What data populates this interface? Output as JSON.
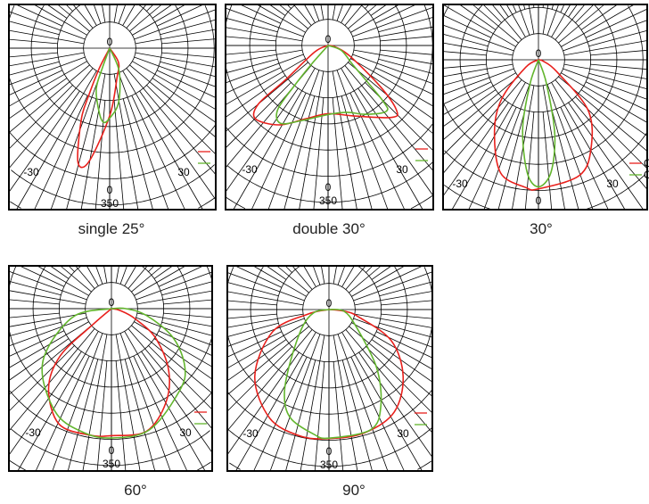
{
  "colors": {
    "c0": "#e8201c",
    "c90": "#62b52d",
    "grid": "#000000"
  },
  "chart_data": [
    {
      "type": "polar",
      "caption": "single 25°",
      "labels": {
        "top": "0",
        "left": "-30",
        "right": "30",
        "bottom": "0",
        "scale": "350"
      },
      "legend": [
        "",
        ""
      ],
      "series": [
        {
          "color": "#e8201c",
          "points": [
            [
              0,
              0
            ],
            [
              -27.2,
              0.87
            ],
            [
              -23.9,
              1.96
            ],
            [
              -21.8,
              2.91
            ],
            [
              -15.6,
              4.52
            ],
            [
              -10.4,
              4.42
            ],
            [
              0,
              2.59
            ],
            [
              14.3,
              1.15
            ],
            [
              32,
              0.64
            ],
            [
              0,
              0
            ]
          ]
        },
        {
          "color": "#62b52d",
          "points": [
            [
              0,
              0
            ],
            [
              -20.2,
              0.82
            ],
            [
              -18.1,
              1.65
            ],
            [
              -9.1,
              2.51
            ],
            [
              -4.6,
              2.85
            ],
            [
              0,
              2.68
            ],
            [
              9.3,
              2.11
            ],
            [
              22.3,
              0.96
            ],
            [
              0,
              0
            ]
          ]
        }
      ]
    },
    {
      "type": "polar",
      "caption": "double 30°",
      "labels": {
        "top": "0",
        "left": "-30",
        "right": "30",
        "bottom": "0",
        "scale": "350"
      },
      "legend": [
        "",
        ""
      ],
      "series": [
        {
          "color": "#e8201c",
          "points": [
            [
              0,
              0
            ],
            [
              -63.9,
              0.57
            ],
            [
              -51.1,
              2.12
            ],
            [
              -50,
              3.48
            ],
            [
              -44.8,
              3.95
            ],
            [
              -31.7,
              3.57
            ],
            [
              -16.9,
              2.93
            ],
            [
              0,
              2.61
            ],
            [
              19.7,
              2.86
            ],
            [
              41.6,
              3.68
            ],
            [
              46.7,
              3.59
            ],
            [
              51.9,
              2.53
            ],
            [
              63.7,
              0.95
            ],
            [
              78.7,
              0.29
            ],
            [
              0,
              0
            ]
          ]
        },
        {
          "color": "#62b52d",
          "points": [
            [
              0,
              0
            ],
            [
              -41.6,
              0.94
            ],
            [
              -40,
              2.03
            ],
            [
              -38.1,
              3.13
            ],
            [
              -31.4,
              3.49
            ],
            [
              -18.6,
              3.02
            ],
            [
              0,
              2.64
            ],
            [
              16.1,
              2.66
            ],
            [
              28.3,
              2.99
            ],
            [
              41.3,
              3.36
            ],
            [
              44.7,
              2.99
            ],
            [
              51.8,
              1.23
            ],
            [
              69.3,
              0.55
            ],
            [
              0,
              0
            ]
          ]
        }
      ]
    },
    {
      "type": "polar",
      "caption": "30°",
      "labels": {
        "top": "0",
        "left": "-30",
        "right": "30",
        "bottom": "0",
        "scale": ""
      },
      "legend": [
        "C",
        "C"
      ],
      "series": [
        {
          "color": "#e8201c",
          "points": [
            [
              0,
              0
            ],
            [
              -59.8,
              0.56
            ],
            [
              -43.4,
              2.03
            ],
            [
              -31.7,
              3.2
            ],
            [
              -18.6,
              4.56
            ],
            [
              -5.7,
              4.91
            ],
            [
              0,
              4.94
            ],
            [
              19.4,
              4.7
            ],
            [
              30.5,
              3.96
            ],
            [
              44.5,
              2.71
            ],
            [
              57,
              0.83
            ],
            [
              73.6,
              0.2
            ],
            [
              0,
              0
            ]
          ]
        },
        {
          "color": "#62b52d",
          "points": [
            [
              0,
              0
            ],
            [
              -19.3,
              0.96
            ],
            [
              -13,
              2.68
            ],
            [
              -5.7,
              4.34
            ],
            [
              0,
              4.86
            ],
            [
              6.3,
              4.34
            ],
            [
              12.4,
              2.91
            ],
            [
              18.6,
              0.96
            ],
            [
              0,
              0
            ]
          ]
        }
      ]
    },
    {
      "type": "polar",
      "caption": "60°",
      "labels": {
        "top": "0",
        "left": "-30",
        "right": "30",
        "bottom": "0",
        "scale": "350"
      },
      "legend": [
        "",
        ""
      ],
      "series": [
        {
          "color": "#e8201c",
          "points": [
            [
              0,
              0
            ],
            [
              -49.5,
              0.93
            ],
            [
              -47.4,
              2.65
            ],
            [
              -38.3,
              3.88
            ],
            [
              -24.5,
              4.85
            ],
            [
              -9.6,
              4.91
            ],
            [
              0,
              4.86
            ],
            [
              15.9,
              4.88
            ],
            [
              29.9,
              4.17
            ],
            [
              42.9,
              3.22
            ],
            [
              56.5,
              2.02
            ],
            [
              67.1,
              0.96
            ],
            [
              77.9,
              0.33
            ],
            [
              0,
              0
            ]
          ]
        },
        {
          "color": "#62b52d",
          "points": [
            [
              0,
              0
            ],
            [
              -79.3,
              1.41
            ],
            [
              -58.9,
              2.81
            ],
            [
              -45.5,
              3.7
            ],
            [
              -27,
              4.56
            ],
            [
              -12.4,
              4.86
            ],
            [
              0,
              4.95
            ],
            [
              17.4,
              4.86
            ],
            [
              39.4,
              4.09
            ],
            [
              51.4,
              3.6
            ],
            [
              64.8,
              2.61
            ],
            [
              79,
              1.37
            ],
            [
              90,
              0.55
            ],
            [
              0,
              0
            ]
          ]
        }
      ]
    },
    {
      "type": "polar",
      "caption": "90°",
      "labels": {
        "top": "0",
        "left": "-30",
        "right": "30",
        "bottom": "0",
        "scale": "350"
      },
      "legend": [
        "",
        ""
      ],
      "series": [
        {
          "color": "#e8201c",
          "points": [
            [
              0,
              0
            ],
            [
              -77.9,
              0.81
            ],
            [
              -68.5,
              2.32
            ],
            [
              -48,
              3.82
            ],
            [
              -28.7,
              4.73
            ],
            [
              -13.2,
              4.96
            ],
            [
              0,
              4.94
            ],
            [
              16.1,
              4.91
            ],
            [
              32.5,
              4.65
            ],
            [
              48,
              3.82
            ],
            [
              63.4,
              2.67
            ],
            [
              76,
              1.17
            ],
            [
              84,
              0.57
            ],
            [
              0,
              0
            ]
          ]
        },
        {
          "color": "#62b52d",
          "points": [
            [
              0,
              0
            ],
            [
              -78.7,
              0.58
            ],
            [
              -56.3,
              1.23
            ],
            [
              -36.6,
              2.48
            ],
            [
              -27.8,
              3.66
            ],
            [
              -19.6,
              4.4
            ],
            [
              -6.8,
              4.81
            ],
            [
              0,
              4.92
            ],
            [
              19.1,
              4.87
            ],
            [
              28.3,
              4.19
            ],
            [
              39.4,
              2.87
            ],
            [
              58.6,
              1.2
            ],
            [
              84,
              0.57
            ],
            [
              0,
              0
            ]
          ]
        }
      ]
    }
  ]
}
